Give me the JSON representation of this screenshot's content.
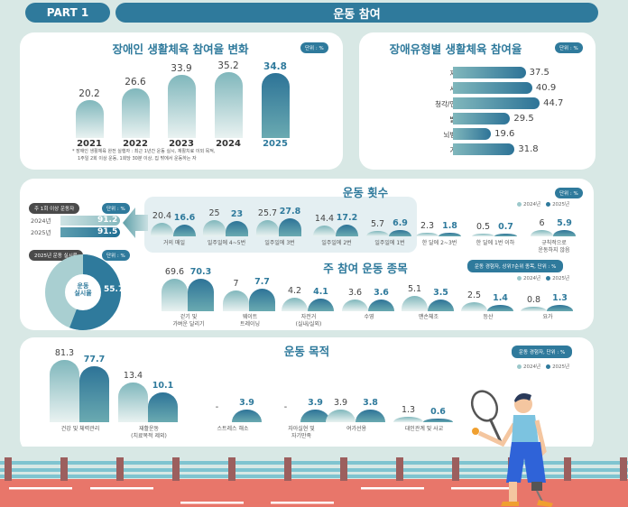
{
  "header": {
    "part": "PART 1",
    "title": "운동 참여"
  },
  "colors": {
    "accent": "#2f7a9c",
    "light_bar": "#80b7bc",
    "track": "#e8766a"
  },
  "chart_data": [
    {
      "type": "bar",
      "title": "장애인 생활체육 참여율 변화",
      "unit": "단위 : %",
      "categories": [
        "2021",
        "2022",
        "2023",
        "2024",
        "2025"
      ],
      "values": [
        20.2,
        26.6,
        33.9,
        35.2,
        34.8
      ],
      "footnote": [
        "* 장애인 생활체육 완전 실행자 : 최근 1년간 운동 실시, 재활치료 이외 목적,",
        "1주일 2회 이상 운동, 1회당 30분 이상, 집 밖에서 운동하는 자"
      ]
    },
    {
      "type": "bar",
      "orientation": "horizontal",
      "title": "장애유형별 생활체육 참여율",
      "unit": "단위 : %",
      "categories": [
        "지체장애",
        "시각장애",
        "청각/언어장애",
        "발달장애",
        "뇌병변장애",
        "기타장애"
      ],
      "values": [
        37.5,
        40.9,
        44.7,
        29.5,
        19.6,
        31.8
      ]
    },
    {
      "type": "bar",
      "title": "운동 횟수",
      "unit": "단위 : %",
      "categories": [
        "거의 매일",
        "일주일에 4~5번",
        "일주일에 3번",
        "일주일에 2번",
        "일주일에 1번",
        "한 달에 2~3번",
        "한 달에 1번 이하",
        "규칙적으로\n운동하지 않음"
      ],
      "series": [
        {
          "name": "2024년",
          "values": [
            20.4,
            25.0,
            25.7,
            14.4,
            5.7,
            2.3,
            0.5,
            6.0
          ]
        },
        {
          "name": "2025년",
          "values": [
            16.6,
            23.0,
            27.8,
            17.2,
            6.9,
            1.8,
            0.7,
            5.9
          ]
        }
      ]
    },
    {
      "type": "bar",
      "orientation": "horizontal",
      "title": "주 1회 이상 운동자",
      "unit": "단위 : %",
      "categories": [
        "2024년",
        "2025년"
      ],
      "values": [
        91.2,
        91.5
      ]
    },
    {
      "type": "pie",
      "title": "2025년 운동 실시율",
      "unit": "단위 : %",
      "center_label": "운동\n실시율",
      "values": [
        55.7
      ]
    },
    {
      "type": "bar",
      "title": "주 참여 운동 종목",
      "unit": "운동 경험자, 상위7순위 종목, 단위 : %",
      "categories": [
        "걷기 및\n가벼운 달리기",
        "웨이트\n트레이닝",
        "자전거\n(실내/실외)",
        "수영",
        "맨손체조",
        "등산",
        "요가"
      ],
      "series": [
        {
          "name": "2024년",
          "values": [
            69.6,
            7.0,
            4.2,
            3.6,
            5.1,
            2.5,
            0.8
          ]
        },
        {
          "name": "2025년",
          "values": [
            70.3,
            7.7,
            4.1,
            3.6,
            3.5,
            1.4,
            1.3
          ]
        }
      ]
    },
    {
      "type": "bar",
      "title": "운동 목적",
      "unit": "운동 경험자, 단위 : %",
      "categories": [
        "건강 및 체력관리",
        "재활운동\n(치료목적 제외)",
        "스트레스 해소",
        "자아실현 및\n자기만족",
        "여가선용",
        "대인관계 및 사교"
      ],
      "missing_label": "-",
      "series": [
        {
          "name": "2024년",
          "values": [
            81.3,
            13.4,
            null,
            null,
            3.9,
            1.3
          ]
        },
        {
          "name": "2025년",
          "values": [
            77.7,
            10.1,
            3.9,
            3.9,
            3.8,
            0.6
          ]
        }
      ]
    }
  ]
}
